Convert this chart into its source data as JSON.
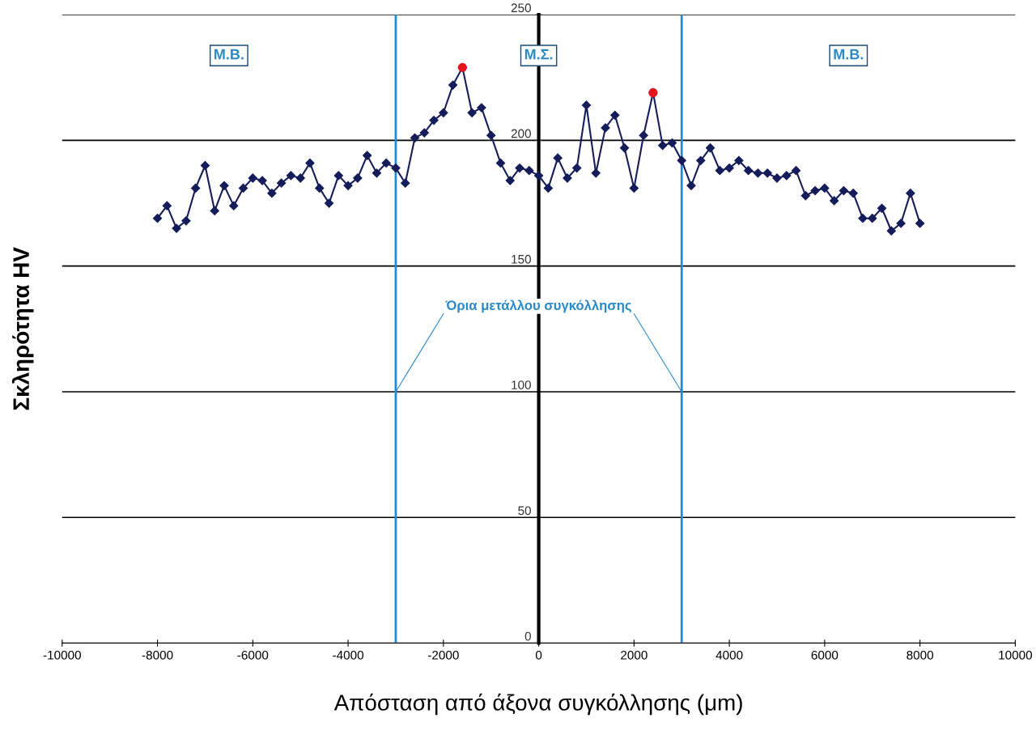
{
  "chart_data": {
    "type": "line",
    "xlabel": "Απόσταση από άξονα συγκόλλησης (μm)",
    "ylabel": "Σκληρότητα HV",
    "series": [
      {
        "color": "#141c5a",
        "marker": "diamond",
        "x": [
          -8000,
          -7800,
          -7600,
          -7400,
          -7200,
          -7000,
          -6800,
          -6600,
          -6400,
          -6200,
          -6000,
          -5800,
          -5600,
          -5400,
          -5200,
          -5000,
          -4800,
          -4600,
          -4400,
          -4200,
          -4000,
          -3800,
          -3600,
          -3400,
          -3200,
          -3000,
          -2800,
          -2600,
          -2400,
          -2200,
          -2000,
          -1800,
          -1600,
          -1400,
          -1200,
          -1000,
          -800,
          -600,
          -400,
          -200,
          0,
          200,
          400,
          600,
          800,
          1000,
          1200,
          1400,
          1600,
          1800,
          2000,
          2200,
          2400,
          2600,
          2800,
          3000,
          3200,
          3400,
          3600,
          3800,
          4000,
          4200,
          4400,
          4600,
          4800,
          5000,
          5200,
          5400,
          5600,
          5800,
          6000,
          6200,
          6400,
          6600,
          6800,
          7000,
          7200,
          7400,
          7600,
          7800,
          8000
        ],
        "values": [
          169,
          174,
          165,
          168,
          181,
          190,
          172,
          182,
          174,
          181,
          185,
          184,
          179,
          183,
          186,
          185,
          191,
          181,
          175,
          186,
          182,
          185,
          194,
          187,
          191,
          189,
          183,
          201,
          203,
          208,
          211,
          222,
          229,
          211,
          213,
          202,
          191,
          184,
          189,
          188,
          186,
          181,
          193,
          185,
          189,
          214,
          187,
          205,
          210,
          197,
          181,
          202,
          219,
          198,
          199,
          192,
          182,
          192,
          197,
          188,
          189,
          192,
          188,
          187,
          187,
          185,
          186,
          188,
          178,
          180,
          181,
          176,
          180,
          179,
          169,
          169,
          173,
          164,
          167,
          179,
          167
        ]
      },
      {
        "type": "scatter",
        "color": "#e8141c",
        "marker": "circle",
        "x": [
          -1600,
          2400
        ],
        "values": [
          229,
          219
        ]
      }
    ],
    "xlim": [
      -10000,
      10000
    ],
    "xticks": [
      -10000,
      -8000,
      -6000,
      -4000,
      -2000,
      0,
      2000,
      4000,
      6000,
      8000,
      10000
    ],
    "ylim": [
      0,
      250
    ],
    "yticks": [
      0,
      50,
      100,
      150,
      200,
      250
    ],
    "grid": "y",
    "legend": false,
    "ref_lines": [
      {
        "axis": "x",
        "value": -3000,
        "color": "#2a8ac8"
      },
      {
        "axis": "x",
        "value": 3000,
        "color": "#2a8ac8"
      }
    ],
    "annotations": [
      "Μ.Β.",
      "Μ.Σ.",
      "Μ.Β.",
      {
        "text": "Όρια μετάλλου συγκόλλησης",
        "x": -3000,
        "y": 100
      }
    ]
  }
}
